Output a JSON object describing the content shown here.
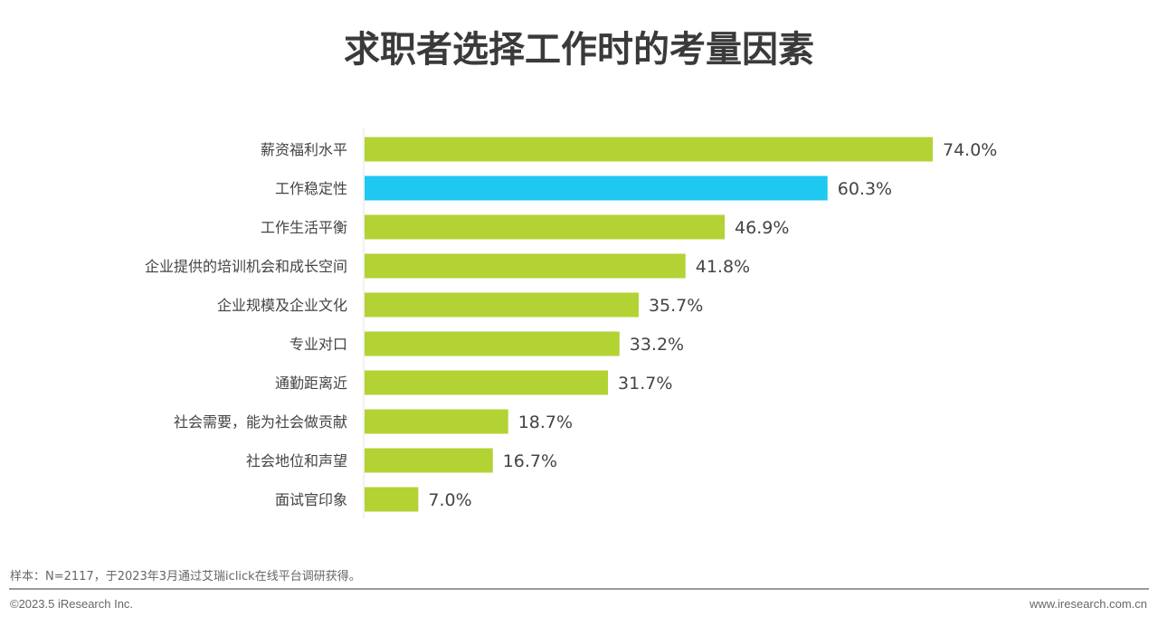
{
  "chart_data": {
    "type": "bar",
    "orientation": "horizontal",
    "title": "求职者选择工作时的考量因素",
    "categories": [
      "薪资福利水平",
      "工作稳定性",
      "工作生活平衡",
      "企业提供的培训机会和成长空间",
      "企业规模及企业文化",
      "专业对口",
      "通勤距离近",
      "社会需要，能为社会做贡献",
      "社会地位和声望",
      "面试官印象"
    ],
    "values": [
      74.0,
      60.3,
      46.9,
      41.8,
      35.7,
      33.2,
      31.7,
      18.7,
      16.7,
      7.0
    ],
    "labels": [
      "74.0%",
      "60.3%",
      "46.9%",
      "41.8%",
      "35.7%",
      "33.2%",
      "31.7%",
      "18.7%",
      "16.7%",
      "7.0%"
    ],
    "unit": "%",
    "highlight_index": 1,
    "colors": {
      "default": "#b3d234",
      "highlight": "#1fc8f0"
    },
    "grid": false
  },
  "footer": {
    "note": "样本：N=2117，于2023年3月通过艾瑞iclick在线平台调研获得。",
    "copyright": "©2023.5 iResearch Inc.",
    "website": "www.iresearch.com.cn"
  }
}
